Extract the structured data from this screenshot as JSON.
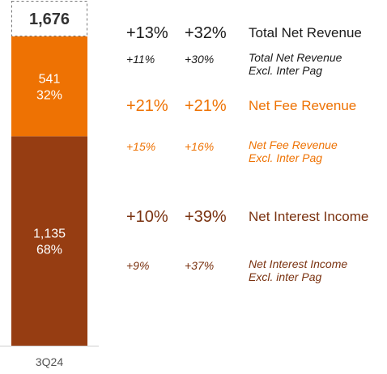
{
  "chart_data": {
    "type": "bar",
    "stacked": true,
    "categories": [
      "3Q24"
    ],
    "total": {
      "label": "1,676",
      "value": 1676
    },
    "series": [
      {
        "value": 1135,
        "label": "1,135",
        "pct": "68%",
        "color": "#963D12"
      },
      {
        "value": 541,
        "label": "541",
        "pct": "32%",
        "color": "#EE7203"
      }
    ]
  },
  "growth_table": [
    {
      "style": "main",
      "color": "#1A1A1A",
      "g1": "+13%",
      "g2": "+32%",
      "label": "Total Net Revenue"
    },
    {
      "style": "sub",
      "color": "#1A1A1A",
      "g1": "+11%",
      "g2": "+30%",
      "label": "Total Net Revenue\nExcl. Inter Pag"
    },
    {
      "style": "main",
      "color": "#EE7203",
      "g1": "+21%",
      "g2": "+21%",
      "label": "Net Fee Revenue"
    },
    {
      "style": "sub",
      "color": "#EE7203",
      "g1": "+15%",
      "g2": "+16%",
      "label": "Net Fee Revenue\nExcl. Inter Pag"
    },
    {
      "style": "main",
      "color": "#7A3210",
      "g1": "+10%",
      "g2": "+39%",
      "label": "Net Interest Income"
    },
    {
      "style": "sub",
      "color": "#7A3210",
      "g1": "+9%",
      "g2": "+37%",
      "label": "Net Interest Income\nExcl. inter Pag"
    }
  ]
}
